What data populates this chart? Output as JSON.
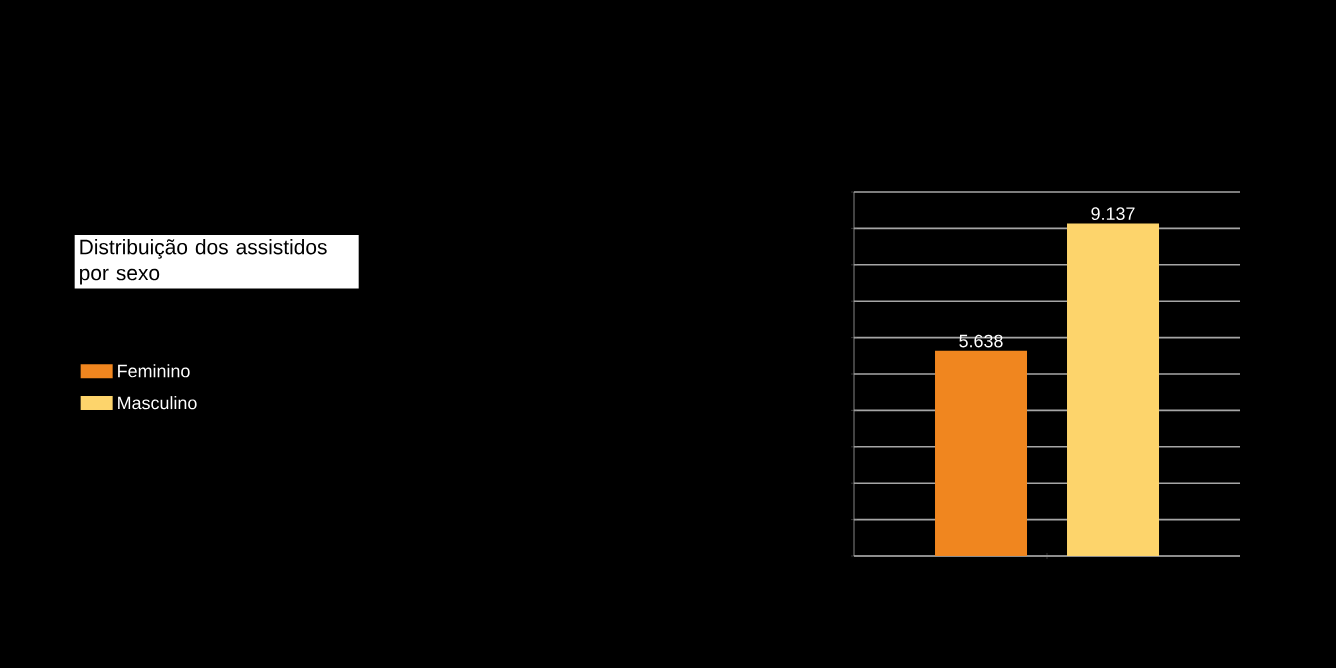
{
  "chart_data": {
    "type": "bar",
    "title": "Distribuição dos assistidos por sexo",
    "categories": [
      null
    ],
    "series": [
      {
        "name": "Feminino",
        "color": "#f0861f",
        "values": [
          5638
        ],
        "value_labels": [
          "5.638"
        ]
      },
      {
        "name": "Masculino",
        "color": "#fdd46b",
        "values": [
          9137
        ],
        "value_labels": [
          "9.137"
        ]
      }
    ],
    "ylim": [
      0,
      10000
    ],
    "yticks": [
      {
        "value": 0,
        "label": null
      },
      {
        "value": 1000,
        "label": null
      },
      {
        "value": 2000,
        "label": null
      },
      {
        "value": 3000,
        "label": null
      },
      {
        "value": 4000,
        "label": null
      },
      {
        "value": 5000,
        "label": null
      },
      {
        "value": 6000,
        "label": null
      },
      {
        "value": 7000,
        "label": null
      },
      {
        "value": 8000,
        "label": null
      },
      {
        "value": 9000,
        "label": null
      },
      {
        "value": 10000,
        "label": null
      }
    ],
    "grid": "y",
    "legend": "left"
  }
}
